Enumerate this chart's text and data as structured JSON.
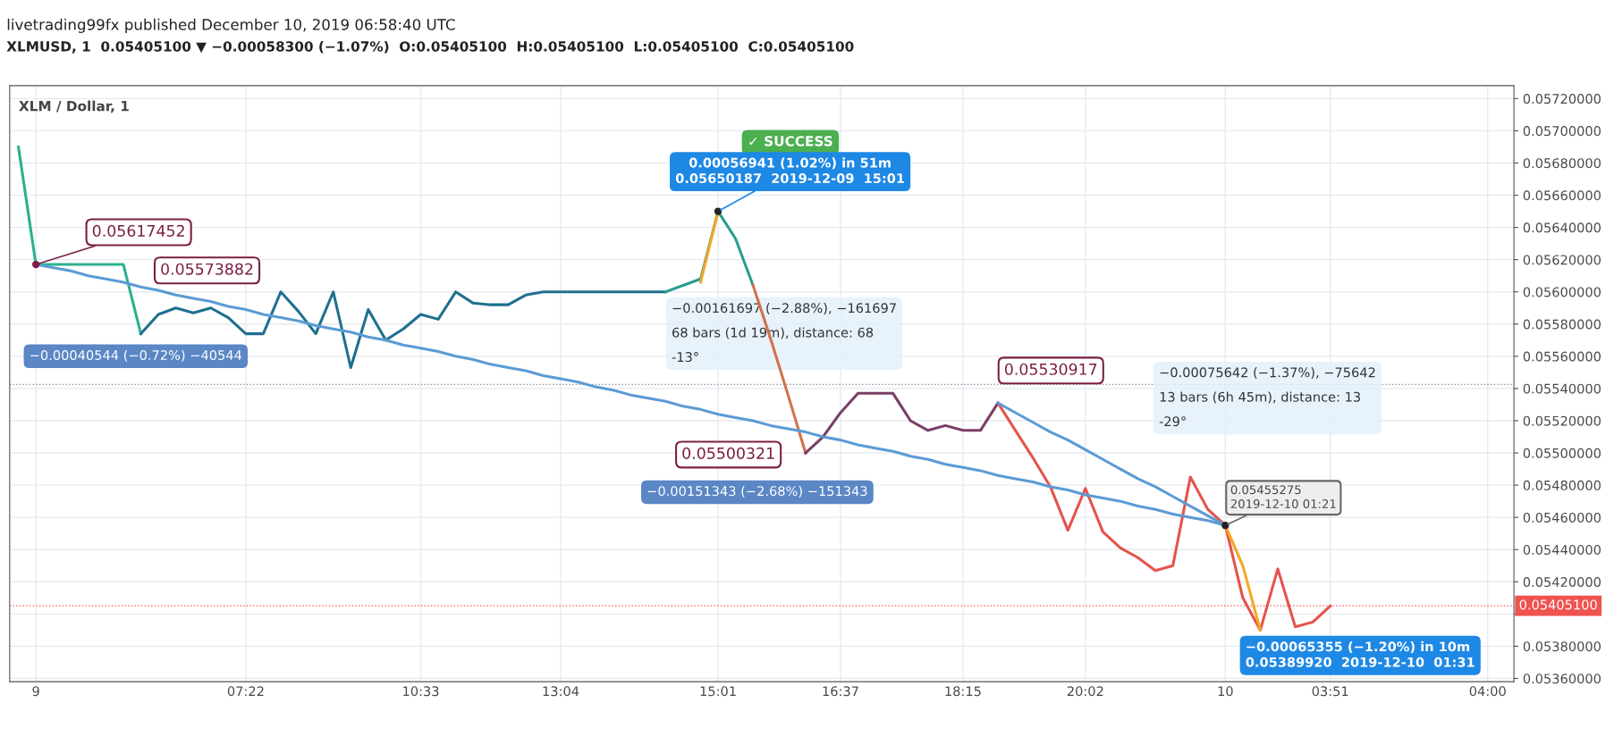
{
  "chart_data": {
    "type": "line",
    "title": "livetrading99fx published December 10, 2019 06:58:40 UTC",
    "subtitle": "XLMUSD, 1  0.05405100 ▼ −0.00058300 (−1.07%)  O:0.05405100  H:0.05405100  L:0.05405100  C:0.05405100",
    "categories": [
      null,
      "9",
      null,
      null,
      null,
      null,
      null,
      null,
      null,
      null,
      null,
      null,
      null,
      "07:22",
      null,
      null,
      null,
      null,
      null,
      null,
      null,
      null,
      null,
      "10:33",
      null,
      null,
      null,
      null,
      null,
      null,
      null,
      "13:04",
      null,
      null,
      null,
      null,
      null,
      null,
      null,
      null,
      "15:01",
      null,
      null,
      null,
      null,
      null,
      null,
      "16:37",
      null,
      null,
      null,
      null,
      null,
      null,
      "18:15",
      null,
      null,
      null,
      null,
      null,
      null,
      "20:02",
      null,
      null,
      null,
      null,
      null,
      null,
      null,
      "10",
      null,
      null,
      null,
      null,
      null,
      "03:51",
      null,
      null,
      null,
      null,
      null,
      null,
      null,
      null,
      "04:00",
      null
    ],
    "series": [
      {
        "color": "#2bb08f",
        "values": [
          0.0569,
          0.05617,
          0.05617,
          0.05617,
          0.05617,
          0.05617,
          0.05617,
          0.05574,
          null,
          null,
          null,
          null,
          null,
          null,
          null,
          null,
          null,
          null,
          null,
          null,
          null,
          null,
          null,
          null,
          null,
          null,
          null,
          null,
          null,
          null,
          null,
          null,
          null,
          null,
          null,
          null,
          null,
          null,
          null,
          null,
          null,
          null,
          null,
          null,
          null,
          null,
          null,
          null,
          null,
          null,
          null,
          null,
          null,
          null,
          null,
          null,
          null,
          null,
          null,
          null,
          null,
          null,
          null,
          null,
          null,
          null,
          null,
          null,
          null,
          null,
          null,
          null,
          null,
          null,
          null,
          null,
          null,
          null,
          null,
          null,
          null,
          null,
          null,
          null,
          null,
          null
        ]
      },
      {
        "color": "#1f6f8f",
        "values": [
          null,
          null,
          null,
          null,
          null,
          null,
          null,
          0.05574,
          0.05586,
          0.0559,
          0.05587,
          0.0559,
          0.05584,
          0.05574,
          0.05574,
          0.056,
          0.05588,
          0.05574,
          0.056,
          0.05553,
          0.05589,
          0.0557,
          0.05577,
          0.05586,
          0.05583,
          0.056,
          0.05593,
          0.05592,
          0.05592,
          0.05598,
          0.056,
          0.056,
          0.056,
          0.056,
          0.056,
          0.056,
          0.056,
          0.056,
          null,
          null,
          null,
          null,
          null,
          null,
          null,
          null,
          null,
          null,
          null,
          null,
          null,
          null,
          null,
          null,
          null,
          null,
          null,
          null,
          null,
          null,
          null,
          null,
          null,
          null,
          null,
          null,
          null,
          null,
          null,
          null,
          null,
          null,
          null,
          null,
          null,
          null,
          null,
          null,
          null,
          null,
          null,
          null,
          null,
          null,
          null,
          null
        ]
      },
      {
        "color": "#2a9d8f",
        "values": [
          null,
          null,
          null,
          null,
          null,
          null,
          null,
          null,
          null,
          null,
          null,
          null,
          null,
          null,
          null,
          null,
          null,
          null,
          null,
          null,
          null,
          null,
          null,
          null,
          null,
          null,
          null,
          null,
          null,
          null,
          null,
          null,
          null,
          null,
          null,
          null,
          null,
          0.056,
          0.05604,
          0.05608,
          0.0565,
          0.05633,
          0.05604,
          null,
          null,
          null,
          null,
          null,
          null,
          null,
          null,
          null,
          null,
          null,
          null,
          null,
          null,
          null,
          null,
          null,
          null,
          null,
          null,
          null,
          null,
          null,
          null,
          null,
          null,
          null,
          null,
          null,
          null,
          null,
          null,
          null,
          null,
          null,
          null,
          null,
          null,
          null,
          null,
          null,
          null,
          null
        ]
      },
      {
        "color": "#d2714c",
        "values": [
          null,
          null,
          null,
          null,
          null,
          null,
          null,
          null,
          null,
          null,
          null,
          null,
          null,
          null,
          null,
          null,
          null,
          null,
          null,
          null,
          null,
          null,
          null,
          null,
          null,
          null,
          null,
          null,
          null,
          null,
          null,
          null,
          null,
          null,
          null,
          null,
          null,
          null,
          null,
          null,
          null,
          null,
          0.05604,
          0.05571,
          0.05536,
          0.055,
          null,
          null,
          null,
          null,
          null,
          null,
          null,
          null,
          null,
          null,
          null,
          null,
          null,
          null,
          null,
          null,
          null,
          null,
          null,
          null,
          null,
          null,
          null,
          null,
          null,
          null,
          null,
          null,
          null,
          null,
          null,
          null,
          null,
          null,
          null,
          null,
          null,
          null,
          null,
          null
        ]
      },
      {
        "color": "#7b3f67",
        "values": [
          null,
          null,
          null,
          null,
          null,
          null,
          null,
          null,
          null,
          null,
          null,
          null,
          null,
          null,
          null,
          null,
          null,
          null,
          null,
          null,
          null,
          null,
          null,
          null,
          null,
          null,
          null,
          null,
          null,
          null,
          null,
          null,
          null,
          null,
          null,
          null,
          null,
          null,
          null,
          null,
          null,
          null,
          null,
          null,
          null,
          0.055,
          0.0551,
          0.05525,
          0.05537,
          0.05537,
          0.05537,
          0.0552,
          0.05514,
          0.05517,
          0.05514,
          0.05514,
          0.05531,
          null,
          null,
          null,
          null,
          null,
          null,
          null,
          null,
          null,
          null,
          null,
          null,
          null,
          null,
          null,
          null,
          null,
          null,
          null,
          null,
          null,
          null,
          null,
          null,
          null,
          null,
          null,
          null,
          null
        ]
      },
      {
        "color": "#e5534b",
        "values": [
          null,
          null,
          null,
          null,
          null,
          null,
          null,
          null,
          null,
          null,
          null,
          null,
          null,
          null,
          null,
          null,
          null,
          null,
          null,
          null,
          null,
          null,
          null,
          null,
          null,
          null,
          null,
          null,
          null,
          null,
          null,
          null,
          null,
          null,
          null,
          null,
          null,
          null,
          null,
          null,
          null,
          null,
          null,
          null,
          null,
          null,
          null,
          null,
          null,
          null,
          null,
          null,
          null,
          null,
          null,
          null,
          0.05531,
          0.05514,
          0.05497,
          0.05479,
          0.05452,
          0.05478,
          0.05451,
          0.05441,
          0.05435,
          0.05427,
          0.0543,
          0.05485,
          0.05465,
          0.05455,
          0.0541,
          0.0539,
          0.05428,
          0.05392,
          0.05395,
          0.05405,
          null,
          null,
          null,
          null,
          null,
          null,
          null,
          null,
          null,
          null
        ]
      },
      {
        "color": "#5b9bd5",
        "values": [
          null,
          0.05617,
          0.05615,
          0.05613,
          0.0561,
          0.05608,
          0.05606,
          0.05603,
          0.05601,
          0.05598,
          0.05596,
          0.05594,
          0.05591,
          0.05589,
          0.05586,
          0.05584,
          0.05582,
          0.05579,
          0.05577,
          0.05575,
          0.05572,
          0.0557,
          0.05567,
          0.05565,
          0.05563,
          0.0556,
          0.05558,
          0.05555,
          0.05553,
          0.05551,
          0.05548,
          0.05546,
          0.05544,
          0.05541,
          0.05539,
          0.05536,
          0.05534,
          0.05532,
          0.05529,
          0.05527,
          0.05524,
          0.05522,
          0.0552,
          0.05517,
          0.05515,
          0.05513,
          0.0551,
          0.05508,
          0.05505,
          0.05503,
          0.05501,
          0.05498,
          0.05496,
          0.05493,
          0.05491,
          0.05489,
          0.05486,
          0.05484,
          0.05482,
          0.05479,
          0.05477,
          0.05474,
          0.05472,
          0.0547,
          0.05467,
          0.05465,
          0.05462,
          0.0546,
          0.05458,
          0.05455,
          null,
          null,
          null,
          null,
          null,
          null,
          null,
          null,
          null,
          null,
          null,
          null,
          null,
          null,
          null,
          null
        ]
      },
      {
        "color": "#5b9bd5",
        "values": [
          null,
          null,
          null,
          null,
          null,
          null,
          null,
          null,
          null,
          null,
          null,
          null,
          null,
          null,
          null,
          null,
          null,
          null,
          null,
          null,
          null,
          null,
          null,
          null,
          null,
          null,
          null,
          null,
          null,
          null,
          null,
          null,
          null,
          null,
          null,
          null,
          null,
          null,
          null,
          null,
          null,
          null,
          null,
          null,
          null,
          null,
          null,
          null,
          null,
          null,
          null,
          null,
          null,
          null,
          null,
          null,
          0.05531,
          0.05525,
          0.05519,
          0.05513,
          0.05508,
          0.05502,
          0.05496,
          0.0549,
          0.05484,
          0.05479,
          0.05473,
          0.05467,
          0.05461,
          0.05455,
          null,
          null,
          null,
          null,
          null,
          null,
          null,
          null,
          null,
          null,
          null,
          null,
          null,
          null,
          null,
          null
        ]
      },
      {
        "color": "#f5a623",
        "values": [
          null,
          null,
          null,
          null,
          null,
          null,
          null,
          null,
          null,
          null,
          null,
          null,
          null,
          null,
          null,
          null,
          null,
          null,
          null,
          null,
          null,
          null,
          null,
          null,
          null,
          null,
          null,
          null,
          null,
          null,
          null,
          null,
          null,
          null,
          null,
          null,
          null,
          null,
          null,
          0.05606,
          0.0565,
          null,
          null,
          null,
          null,
          null,
          null,
          null,
          null,
          null,
          null,
          null,
          null,
          null,
          null,
          null,
          null,
          null,
          null,
          null,
          null,
          null,
          null,
          null,
          null,
          null,
          null,
          null,
          null,
          null,
          null,
          null,
          null,
          null,
          null,
          null,
          null,
          null,
          null,
          null,
          null,
          null,
          null,
          null,
          null,
          null
        ]
      },
      {
        "color": "#f5a623",
        "values": [
          null,
          null,
          null,
          null,
          null,
          null,
          null,
          null,
          null,
          null,
          null,
          null,
          null,
          null,
          null,
          null,
          null,
          null,
          null,
          null,
          null,
          null,
          null,
          null,
          null,
          null,
          null,
          null,
          null,
          null,
          null,
          null,
          null,
          null,
          null,
          null,
          null,
          null,
          null,
          null,
          null,
          null,
          null,
          null,
          null,
          null,
          null,
          null,
          null,
          null,
          null,
          null,
          null,
          null,
          null,
          null,
          null,
          null,
          null,
          null,
          null,
          null,
          null,
          null,
          null,
          null,
          null,
          null,
          null,
          0.05455,
          0.0543,
          0.0539,
          null,
          null,
          null,
          null,
          null,
          null,
          null,
          null,
          null,
          null,
          null,
          null,
          null,
          null
        ]
      }
    ],
    "ylim": [
      0.05358,
      0.05728
    ],
    "yticks": [
      {
        "value": 0.0536,
        "label": "0.05360000"
      },
      {
        "value": 0.0538,
        "label": "0.05380000"
      },
      {
        "value": 0.054,
        "label": null
      },
      {
        "value": 0.0542,
        "label": "0.05420000"
      },
      {
        "value": 0.0544,
        "label": "0.05440000"
      },
      {
        "value": 0.0546,
        "label": "0.05460000"
      },
      {
        "value": 0.0548,
        "label": "0.05480000"
      },
      {
        "value": 0.055,
        "label": "0.05500000"
      },
      {
        "value": 0.0552,
        "label": "0.05520000"
      },
      {
        "value": 0.0554,
        "label": "0.05540000"
      },
      {
        "value": 0.0556,
        "label": "0.05560000"
      },
      {
        "value": 0.0558,
        "label": "0.05580000"
      },
      {
        "value": 0.056,
        "label": "0.05600000"
      },
      {
        "value": 0.0562,
        "label": "0.05620000"
      },
      {
        "value": 0.0564,
        "label": "0.05640000"
      },
      {
        "value": 0.0566,
        "label": "0.05660000"
      },
      {
        "value": 0.0568,
        "label": "0.05680000"
      },
      {
        "value": 0.057,
        "label": "0.05700000"
      },
      {
        "value": 0.0572,
        "label": "0.05720000"
      }
    ],
    "grid": true,
    "line_style": "solid",
    "ref_lines": [
      {
        "axis": "y",
        "value": 0.054051,
        "label": "0.05405100",
        "color": "#ef5350",
        "line_style": "dotted"
      },
      {
        "axis": "y",
        "value": 0.055425,
        "color": "#8a8f9a",
        "line_style": "dotted"
      }
    ],
    "annotations": [
      {
        "text": "0.05617452",
        "x": "9",
        "y": 0.05617
      },
      "0.05573882",
      "−0.00040544 (−0.72%) −40544",
      "✓ SUCCESS",
      {
        "text": "0.00056941 (1.02%) in 51m\n0.05650187  2019-12-09  15:01",
        "x": "15:01",
        "y": 0.0565
      },
      "−0.00161697 (−2.88%), −161697\n68 bars (1d 19m), distance: 68\n-13°",
      "−0.00151343 (−2.68%) −151343",
      "0.05500321",
      "0.05530917",
      "−0.00075642 (−1.37%), −75642\n13 bars (6h 45m), distance: 13\n-29°",
      {
        "text": "0.05455275\n2019-12-10 01:21",
        "x": "10",
        "y": 0.05455
      },
      "−0.00065355 (−1.20%) in 10m\n0.05389920  2019-12-10  01:31",
      "XLM / Dollar, 1"
    ]
  }
}
